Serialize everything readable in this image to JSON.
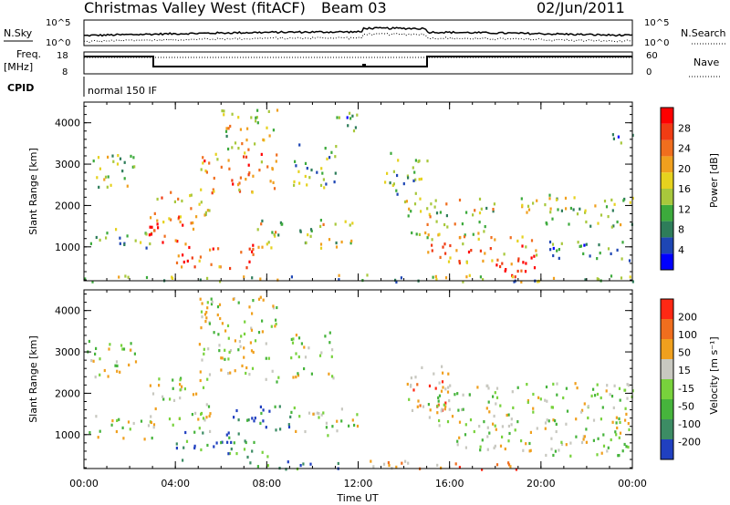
{
  "header": {
    "title": "Christmas Valley West (fitACF)",
    "beam": "Beam 03",
    "date": "02/Jun/2011"
  },
  "top_panels": {
    "nsky_label": "N.Sky",
    "nsky_ticks": [
      "10^5",
      "10^0"
    ],
    "nsearch_label": "N.Search",
    "nsearch_ticks": [
      "10^5",
      "10^0"
    ],
    "freq_label_1": "Freq.",
    "freq_label_2": "[MHz]",
    "freq_ticks": [
      "18",
      "8"
    ],
    "nave_label": "Nave",
    "nave_ticks": [
      "60",
      "0"
    ],
    "cpid_label": "CPID",
    "cpid_value": "normal 150 IF"
  },
  "chart_data": [
    {
      "type": "heatmap",
      "name": "power",
      "xlabel": "Time UT",
      "ylabel": "Slant Range [km]",
      "x_tick_labels": [
        "00:00",
        "04:00",
        "08:00",
        "12:00",
        "16:00",
        "20:00",
        "00:00"
      ],
      "x_ticks_hours": [
        0,
        4,
        8,
        12,
        16,
        20,
        24
      ],
      "ylim": [
        180,
        4500
      ],
      "y_ticks": [
        1000,
        2000,
        3000,
        4000
      ],
      "colorbar_label": "Power [dB]",
      "colorbar_ticks": [
        "28",
        "24",
        "20",
        "16",
        "12",
        "8",
        "4"
      ],
      "colorbar_colors": [
        "#0000ff",
        "#1e46b4",
        "#2e7d5a",
        "#3caa3c",
        "#a8c83c",
        "#e6d21e",
        "#f0a01e",
        "#f06e1e",
        "#f03c14",
        "#ff0000"
      ],
      "regions": [
        {
          "t0": 0.1,
          "t1": 2.2,
          "r0": 2400,
          "r1": 3300,
          "level": 0.45
        },
        {
          "t0": 0.2,
          "t1": 3.0,
          "r0": 1000,
          "r1": 1500,
          "level": 0.35
        },
        {
          "t0": 2.8,
          "t1": 5.0,
          "r0": 1100,
          "r1": 1800,
          "level": 0.9
        },
        {
          "t0": 3.0,
          "t1": 5.5,
          "r0": 1600,
          "r1": 2400,
          "level": 0.6
        },
        {
          "t0": 5.0,
          "t1": 8.5,
          "r0": 2300,
          "r1": 3300,
          "level": 0.7
        },
        {
          "t0": 6.0,
          "t1": 8.5,
          "r0": 3300,
          "r1": 4400,
          "level": 0.5
        },
        {
          "t0": 4.0,
          "t1": 7.5,
          "r0": 500,
          "r1": 1100,
          "level": 0.8
        },
        {
          "t0": 7.5,
          "t1": 12.0,
          "r0": 1000,
          "r1": 1700,
          "level": 0.5
        },
        {
          "t0": 9.0,
          "t1": 11.0,
          "r0": 2400,
          "r1": 3500,
          "level": 0.35
        },
        {
          "t0": 11.0,
          "t1": 12.0,
          "r0": 3600,
          "r1": 4400,
          "level": 0.3
        },
        {
          "t0": 13.0,
          "t1": 15.0,
          "r0": 2300,
          "r1": 3300,
          "level": 0.35
        },
        {
          "t0": 14.0,
          "t1": 18.0,
          "r0": 1200,
          "r1": 2200,
          "level": 0.5
        },
        {
          "t0": 15.0,
          "t1": 20.0,
          "r0": 600,
          "r1": 1300,
          "level": 0.7
        },
        {
          "t0": 18.0,
          "t1": 20.0,
          "r0": 300,
          "r1": 800,
          "level": 0.95
        },
        {
          "t0": 19.0,
          "t1": 24.0,
          "r0": 1500,
          "r1": 2300,
          "level": 0.45
        },
        {
          "t0": 20.0,
          "t1": 24.0,
          "r0": 700,
          "r1": 1200,
          "level": 0.3
        },
        {
          "t0": 23.0,
          "t1": 24.0,
          "r0": 3400,
          "r1": 3800,
          "level": 0.3
        },
        {
          "t0": 0.0,
          "t1": 24.0,
          "r0": 180,
          "r1": 350,
          "level": 0.4
        }
      ]
    },
    {
      "type": "heatmap",
      "name": "velocity",
      "xlabel": "Time UT",
      "ylabel": "Slant Range [km]",
      "x_tick_labels": [
        "00:00",
        "04:00",
        "08:00",
        "12:00",
        "16:00",
        "20:00",
        "00:00"
      ],
      "x_ticks_hours": [
        0,
        4,
        8,
        12,
        16,
        20,
        24
      ],
      "ylim": [
        180,
        4500
      ],
      "y_ticks": [
        1000,
        2000,
        3000,
        4000
      ],
      "colorbar_label": "Velocity [m s⁻¹]",
      "colorbar_ticks": [
        "200",
        "100",
        "50",
        "15",
        "-15",
        "-50",
        "-100",
        "-200"
      ],
      "colorbar_colors": [
        "#2040c0",
        "#3c8c64",
        "#46b43c",
        "#78d23c",
        "#c8c8c0",
        "#f0a01e",
        "#f06e1e",
        "#ff2814"
      ],
      "regions": [
        {
          "t0": 0.1,
          "t1": 2.5,
          "r0": 2400,
          "r1": 3300,
          "level": 0.5
        },
        {
          "t0": 0.2,
          "t1": 3.0,
          "r0": 900,
          "r1": 1500,
          "level": 0.5
        },
        {
          "t0": 2.8,
          "t1": 5.5,
          "r0": 1100,
          "r1": 2400,
          "level": 0.5
        },
        {
          "t0": 5.0,
          "t1": 8.5,
          "r0": 2300,
          "r1": 4400,
          "level": 0.5
        },
        {
          "t0": 4.0,
          "t1": 8.0,
          "r0": 400,
          "r1": 1100,
          "level": 0.2
        },
        {
          "t0": 6.5,
          "t1": 9.0,
          "r0": 1100,
          "r1": 1800,
          "level": 0.1
        },
        {
          "t0": 9.0,
          "t1": 12.0,
          "r0": 1000,
          "r1": 1700,
          "level": 0.5
        },
        {
          "t0": 9.0,
          "t1": 11.0,
          "r0": 2400,
          "r1": 3500,
          "level": 0.5
        },
        {
          "t0": 14.0,
          "t1": 16.0,
          "r0": 1400,
          "r1": 2800,
          "level": 0.7
        },
        {
          "t0": 15.0,
          "t1": 24.0,
          "r0": 1200,
          "r1": 2300,
          "level": 0.5
        },
        {
          "t0": 16.0,
          "t1": 24.0,
          "r0": 500,
          "r1": 1200,
          "level": 0.5
        },
        {
          "t0": 12.5,
          "t1": 20.0,
          "r0": 180,
          "r1": 400,
          "level": 0.75
        },
        {
          "t0": 7.0,
          "t1": 11.5,
          "r0": 180,
          "r1": 400,
          "level": 0.2
        }
      ]
    }
  ]
}
